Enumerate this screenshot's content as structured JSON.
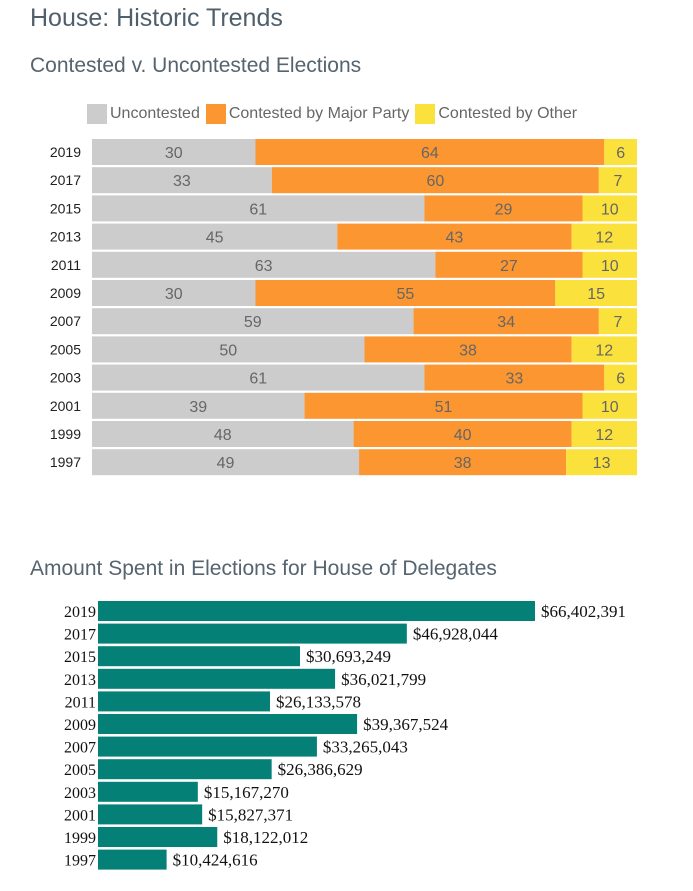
{
  "page": {
    "title": "House: Historic Trends"
  },
  "chart_data": [
    {
      "type": "bar",
      "orientation": "horizontal",
      "stacked": true,
      "title": "Contested v. Uncontested Elections",
      "legend_position": "top",
      "categories": [
        "2019",
        "2017",
        "2015",
        "2013",
        "2011",
        "2009",
        "2007",
        "2005",
        "2003",
        "2001",
        "1999",
        "1997"
      ],
      "series": [
        {
          "name": "Uncontested",
          "color": "#cccccc",
          "values": [
            30,
            33,
            61,
            45,
            63,
            30,
            59,
            50,
            61,
            39,
            48,
            49
          ]
        },
        {
          "name": "Contested by Major Party",
          "color": "#fb9630",
          "values": [
            64,
            60,
            29,
            43,
            27,
            55,
            34,
            38,
            33,
            51,
            40,
            38
          ]
        },
        {
          "name": "Contested by Other",
          "color": "#fae13c",
          "values": [
            6,
            7,
            10,
            12,
            10,
            15,
            7,
            12,
            6,
            10,
            12,
            13
          ]
        }
      ],
      "xlim": [
        0,
        100
      ],
      "grid": false
    },
    {
      "type": "bar",
      "orientation": "horizontal",
      "title": "Amount Spent in Elections for House of Delegates",
      "categories": [
        "2019",
        "2017",
        "2015",
        "2013",
        "2011",
        "2009",
        "2007",
        "2005",
        "2003",
        "2001",
        "1999",
        "1997"
      ],
      "values": [
        66402391,
        46928044,
        30693249,
        36021799,
        26133578,
        39367524,
        33265043,
        26386629,
        15167270,
        15827371,
        18122012,
        10424616
      ],
      "labels": [
        "$66,402,391",
        "$46,928,044",
        "$30,693,249",
        "$36,021,799",
        "$26,133,578",
        "$39,367,524",
        "$33,265,043",
        "$26,386,629",
        "$15,167,270",
        "$15,827,371",
        "$18,122,012",
        "$10,424,616"
      ],
      "color": "#058077",
      "xlim": [
        0,
        66402391
      ],
      "grid": false
    }
  ]
}
